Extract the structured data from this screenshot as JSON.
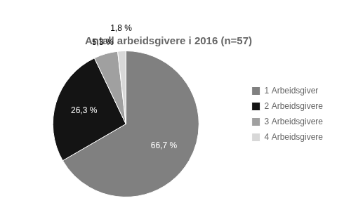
{
  "chart_data": {
    "type": "pie",
    "title": "Antall arbeidsgivere i 2016 (n=57)",
    "categories": [
      "1 Arbeidsgiver",
      "2 Arbeidsgivere",
      "3 Arbeidsgivere",
      "4 Arbeidsgivere"
    ],
    "values": [
      66.7,
      26.3,
      5.3,
      1.8
    ],
    "value_labels": [
      "66,7 %",
      "26,3 %",
      "5,3 %",
      "1,8 %"
    ],
    "colors": [
      "#808080",
      "#141414",
      "#a0a0a0",
      "#d8d8d8"
    ],
    "data_labels": true,
    "legend": "right"
  }
}
